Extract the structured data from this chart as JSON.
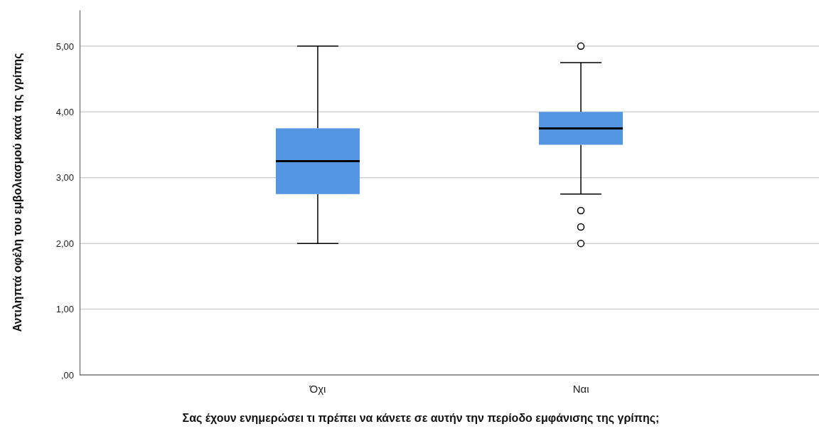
{
  "chart_data": {
    "type": "box",
    "xlabel": "Σας έχουν ενημερώσει τι πρέπει να κάνετε σε αυτήν την περίοδο εμφάνισης της γρίπης;",
    "ylabel": "Αντιληπτά οφέλη του εμβολιασμού κατά της γρίπης",
    "categories": [
      "Όχι",
      "Ναι"
    ],
    "boxes": [
      {
        "low": 2.0,
        "q1": 2.75,
        "median": 3.25,
        "q3": 3.75,
        "high": 5.0
      },
      {
        "low": 2.75,
        "q1": 3.5,
        "median": 3.75,
        "q3": 4.0,
        "high": 4.75,
        "outliers": [
          5.0,
          2.5,
          2.25,
          2.0
        ]
      }
    ],
    "color": "#5596e3",
    "ylim": [
      0,
      5.55
    ],
    "yticks": [
      {
        "value": 0,
        "label": ",00"
      },
      {
        "value": 1,
        "label": "1,00"
      },
      {
        "value": 2,
        "label": "2,00"
      },
      {
        "value": 3,
        "label": "3,00"
      },
      {
        "value": 4,
        "label": "4,00"
      },
      {
        "value": 5,
        "label": "5,00"
      }
    ],
    "grid": "y"
  }
}
